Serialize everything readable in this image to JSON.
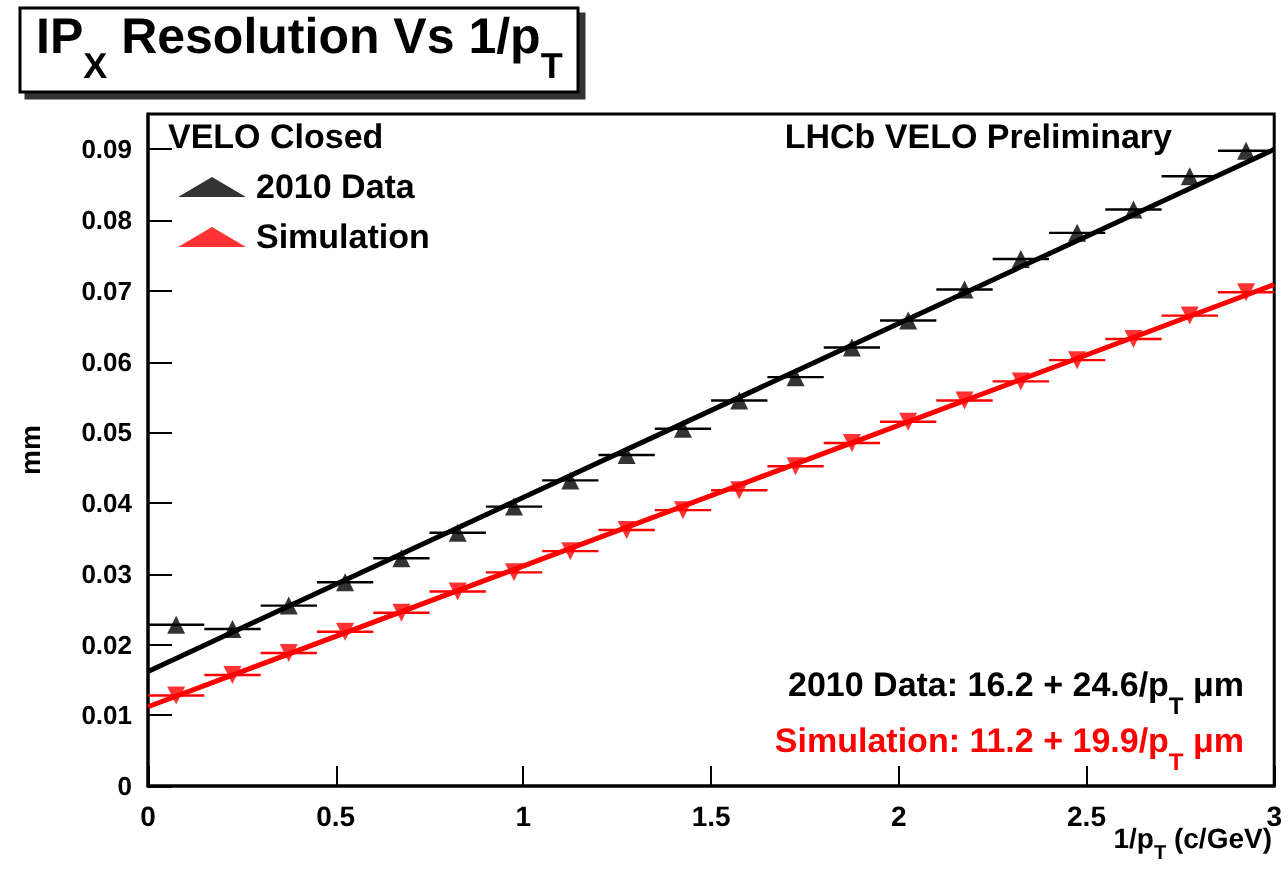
{
  "chart_data": {
    "type": "scatter",
    "title": "IP$_{X}$ Resolution Vs 1/p$_{T}$",
    "xlabel": "1/p$_{T}$ (c/GeV)",
    "ylabel": "mm",
    "annotations": [
      "VELO Closed",
      "LHCb VELO Preliminary",
      "2010 Data: 16.2 + 24.6/p$_{T}$ μm",
      "Simulation: 11.2 + 19.9/p$_{T}$ μm"
    ],
    "xlim": [
      0,
      3
    ],
    "xticks": [
      0,
      0.5,
      1,
      1.5,
      2,
      2.5,
      3
    ],
    "ylim": [
      0,
      0.095
    ],
    "yticks": [
      0,
      0.01,
      0.02,
      0.03,
      0.04,
      0.05,
      0.06,
      0.07,
      0.08,
      0.09
    ],
    "grid": false,
    "legend": "top left",
    "marker": "triangle",
    "series": [
      {
        "name": "2010 Data",
        "color": "#000000",
        "x": [
          0.075,
          0.225,
          0.375,
          0.525,
          0.675,
          0.825,
          0.975,
          1.125,
          1.275,
          1.425,
          1.575,
          1.725,
          1.875,
          2.025,
          2.175,
          2.325,
          2.475,
          2.625,
          2.775,
          2.925
        ],
        "values": [
          0.0228,
          0.0222,
          0.0255,
          0.0288,
          0.0322,
          0.0358,
          0.0395,
          0.0432,
          0.0468,
          0.0505,
          0.0545,
          0.0578,
          0.062,
          0.0658,
          0.0702,
          0.0745,
          0.0782,
          0.0815,
          0.0862,
          0.0898
        ],
        "xerrors": [
          0.075,
          0.075,
          0.075,
          0.075,
          0.075,
          0.075,
          0.075,
          0.075,
          0.075,
          0.075,
          0.075,
          0.075,
          0.075,
          0.075,
          0.075,
          0.075,
          0.075,
          0.075,
          0.075,
          0.075
        ]
      },
      {
        "name": "Simulation",
        "color": "#ff0000",
        "x": [
          0.075,
          0.225,
          0.375,
          0.525,
          0.675,
          0.825,
          0.975,
          1.125,
          1.275,
          1.425,
          1.575,
          1.725,
          1.875,
          2.025,
          2.175,
          2.325,
          2.475,
          2.625,
          2.775,
          2.925
        ],
        "values": [
          0.0128,
          0.0157,
          0.0188,
          0.0218,
          0.0245,
          0.0275,
          0.0302,
          0.0332,
          0.0362,
          0.039,
          0.0418,
          0.0452,
          0.0485,
          0.0515,
          0.0545,
          0.0572,
          0.0602,
          0.0632,
          0.0665,
          0.0698
        ],
        "xerrors": [
          0.075,
          0.075,
          0.075,
          0.075,
          0.075,
          0.075,
          0.075,
          0.075,
          0.075,
          0.075,
          0.075,
          0.075,
          0.075,
          0.075,
          0.075,
          0.075,
          0.075,
          0.075,
          0.075,
          0.075
        ]
      },
      {
        "type": "line",
        "color": "#000000",
        "marker": "none",
        "x": [
          0,
          3
        ],
        "values": [
          0.0162,
          0.09
        ]
      },
      {
        "type": "line",
        "color": "#ff0000",
        "marker": "none",
        "x": [
          0,
          3
        ],
        "values": [
          0.0112,
          0.0709
        ]
      }
    ]
  }
}
